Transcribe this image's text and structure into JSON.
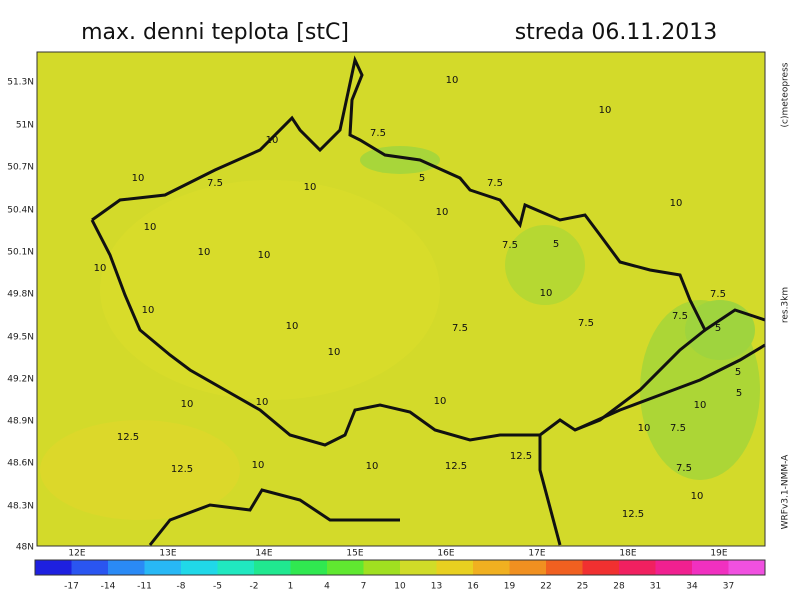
{
  "title": "max. denni teplota [stC]",
  "date": "streda 06.11.2013",
  "latitude_labels": [
    "51.3N",
    "51N",
    "50.7N",
    "50.4N",
    "50.1N",
    "49.8N",
    "49.5N",
    "49.2N",
    "48.9N",
    "48.6N",
    "48.3N",
    "48N"
  ],
  "longitude_labels": [
    "12E",
    "13E",
    "14E",
    "15E",
    "16E",
    "17E",
    "18E",
    "19E"
  ],
  "colorbar_labels": [
    -17,
    -14,
    -11,
    -8,
    -5,
    -2,
    1,
    4,
    7,
    10,
    13,
    16,
    19,
    22,
    25,
    28,
    31,
    34,
    37
  ],
  "contour_labels": [
    "10",
    "10",
    "7.5",
    "10",
    "10",
    "7.5",
    "10",
    "5",
    "7.5",
    "10",
    "10",
    "10",
    "7.5",
    "5",
    "10",
    "10",
    "10",
    "10",
    "7.5",
    "10",
    "7.5",
    "7.5",
    "7.5",
    "10",
    "5",
    "10",
    "5",
    "5",
    "10",
    "10",
    "10",
    "10",
    "10",
    "7.5",
    "12.5",
    "12.5",
    "10",
    "10",
    "12.5",
    "12.5",
    "7.5",
    "10",
    "12.5"
  ],
  "credits": [
    "(c)meteopress",
    "res.3km",
    "WRFv3.1-NMM-A"
  ]
}
